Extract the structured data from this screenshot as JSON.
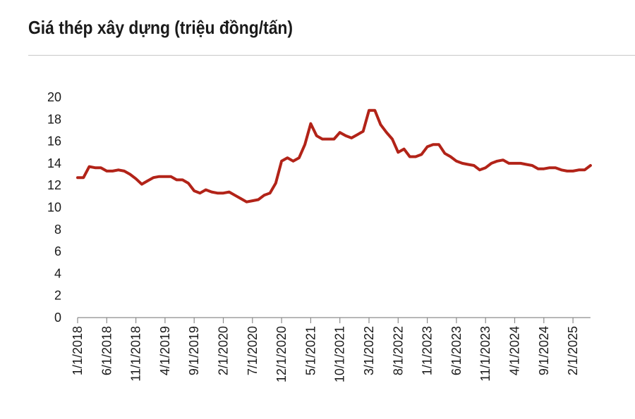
{
  "header": {
    "title": "Giá thép xây dựng (triệu đồng/tấn)"
  },
  "colors": {
    "line": "#b22318",
    "axis": "#8c8c8c",
    "text": "#1a1a1a"
  },
  "chart_data": {
    "type": "line",
    "title": "Giá thép xây dựng (triệu đồng/tấn)",
    "xlabel": "",
    "ylabel": "",
    "ylim": [
      0,
      20
    ],
    "y_ticks": [
      "0",
      "2",
      "4",
      "6",
      "8",
      "10",
      "12",
      "14",
      "16",
      "18",
      "20"
    ],
    "x_tick_labels": [
      "1/1/2018",
      "6/1/2018",
      "11/1/2018",
      "4/1/2019",
      "9/1/2019",
      "2/1/2020",
      "7/1/2020",
      "12/1/2020",
      "5/1/2021",
      "10/1/2021",
      "3/1/2022",
      "8/1/2022",
      "1/1/2023",
      "6/1/2023",
      "11/1/2023",
      "4/1/2024",
      "9/1/2024",
      "2/1/2025"
    ],
    "grid": false,
    "legend": "none",
    "series": [
      {
        "x": [
          "2018-01",
          "2018-02",
          "2018-03",
          "2018-04",
          "2018-05",
          "2018-06",
          "2018-07",
          "2018-08",
          "2018-09",
          "2018-10",
          "2018-11",
          "2018-12",
          "2019-01",
          "2019-02",
          "2019-03",
          "2019-04",
          "2019-05",
          "2019-06",
          "2019-07",
          "2019-08",
          "2019-09",
          "2019-10",
          "2019-11",
          "2019-12",
          "2020-01",
          "2020-02",
          "2020-03",
          "2020-04",
          "2020-05",
          "2020-06",
          "2020-07",
          "2020-08",
          "2020-09",
          "2020-10",
          "2020-11",
          "2020-12",
          "2021-01",
          "2021-02",
          "2021-03",
          "2021-04",
          "2021-05",
          "2021-06",
          "2021-07",
          "2021-08",
          "2021-09",
          "2021-10",
          "2021-11",
          "2021-12",
          "2022-01",
          "2022-02",
          "2022-03",
          "2022-04",
          "2022-05",
          "2022-06",
          "2022-07",
          "2022-08",
          "2022-09",
          "2022-10",
          "2022-11",
          "2022-12",
          "2023-01",
          "2023-02",
          "2023-03",
          "2023-04",
          "2023-05",
          "2023-06",
          "2023-07",
          "2023-08",
          "2023-09",
          "2023-10",
          "2023-11",
          "2023-12",
          "2024-01",
          "2024-02",
          "2024-03",
          "2024-04",
          "2024-05",
          "2024-06",
          "2024-07",
          "2024-08",
          "2024-09",
          "2024-10",
          "2024-11",
          "2024-12",
          "2025-01",
          "2025-02",
          "2025-03",
          "2025-04",
          "2025-05"
        ],
        "values": [
          12.7,
          12.7,
          13.7,
          13.6,
          13.6,
          13.3,
          13.3,
          13.4,
          13.3,
          13.0,
          12.6,
          12.1,
          12.4,
          12.7,
          12.8,
          12.8,
          12.8,
          12.5,
          12.5,
          12.2,
          11.5,
          11.3,
          11.6,
          11.4,
          11.3,
          11.3,
          11.4,
          11.1,
          10.8,
          10.5,
          10.6,
          10.7,
          11.1,
          11.3,
          12.2,
          14.2,
          14.5,
          14.2,
          14.5,
          15.7,
          17.6,
          16.5,
          16.2,
          16.2,
          16.2,
          16.8,
          16.5,
          16.3,
          16.6,
          16.9,
          18.8,
          18.8,
          17.5,
          16.8,
          16.2,
          15.0,
          15.3,
          14.6,
          14.6,
          14.8,
          15.5,
          15.7,
          15.7,
          14.9,
          14.6,
          14.2,
          14.0,
          13.9,
          13.8,
          13.4,
          13.6,
          14.0,
          14.2,
          14.3,
          14.0,
          14.0,
          14.0,
          13.9,
          13.8,
          13.5,
          13.5,
          13.6,
          13.6,
          13.4,
          13.3,
          13.3,
          13.4,
          13.4,
          13.8
        ]
      }
    ]
  }
}
